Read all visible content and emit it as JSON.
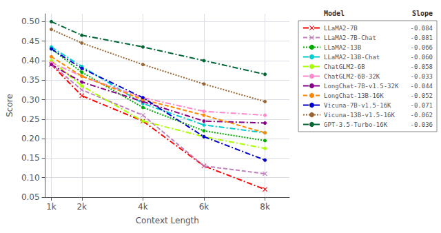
{
  "chart_data": {
    "type": "line",
    "xlabel": "Context Length",
    "ylabel": "Score",
    "x": [
      1000,
      2000,
      4000,
      6000,
      8000
    ],
    "xlim": [
      800,
      8800
    ],
    "xticks": [
      {
        "value": 1000,
        "label": "1k"
      },
      {
        "value": 2000,
        "label": "2k"
      },
      {
        "value": 4000,
        "label": "4k"
      },
      {
        "value": 6000,
        "label": "6k"
      },
      {
        "value": 8000,
        "label": "8k"
      }
    ],
    "ylim": [
      0.05,
      0.52
    ],
    "yticks": [
      {
        "value": 0.05,
        "label": "0.05"
      },
      {
        "value": 0.1,
        "label": "0.10"
      },
      {
        "value": 0.15,
        "label": "0.15"
      },
      {
        "value": 0.2,
        "label": "0.20"
      },
      {
        "value": 0.25,
        "label": "0.25"
      },
      {
        "value": 0.3,
        "label": "0.30"
      },
      {
        "value": 0.35,
        "label": "0.35"
      },
      {
        "value": 0.4,
        "label": "0.40"
      },
      {
        "value": 0.45,
        "label": "0.45"
      },
      {
        "value": 0.5,
        "label": "0.50"
      }
    ],
    "grid": true,
    "legend": "right",
    "legend_columns": [
      "Model",
      "Slope"
    ],
    "series": [
      {
        "name": "LLaMA2-7B",
        "slope": "-0.084",
        "color": "#FF0000",
        "line_style": "dashdot",
        "marker": "x",
        "values": [
          0.39,
          0.31,
          0.245,
          0.13,
          0.07
        ]
      },
      {
        "name": "LLaMA2-7B-Chat",
        "slope": "-0.081",
        "color": "#BF7FBF",
        "line_style": "dashed",
        "marker": "x",
        "values": [
          0.39,
          0.325,
          0.26,
          0.13,
          0.11
        ]
      },
      {
        "name": "LLaMA2-13B",
        "slope": "-0.066",
        "color": "#00AA00",
        "line_style": "dotted",
        "marker": "point",
        "values": [
          0.43,
          0.37,
          0.28,
          0.22,
          0.195
        ]
      },
      {
        "name": "LLaMA2-13B-Chat",
        "slope": "-0.060",
        "color": "#00CCCC",
        "line_style": "dashdot",
        "marker": "point",
        "values": [
          0.435,
          0.385,
          0.29,
          0.235,
          0.215
        ]
      },
      {
        "name": "ChatGLM2-6B",
        "slope": "-0.058",
        "color": "#AAFF00",
        "line_style": "dashdot",
        "marker": "point",
        "values": [
          0.4,
          0.335,
          0.245,
          0.205,
          0.175
        ]
      },
      {
        "name": "ChatGLM2-6B-32K",
        "slope": "-0.033",
        "color": "#FF88CC",
        "line_style": "dashdot",
        "marker": "point",
        "values": [
          0.395,
          0.36,
          0.305,
          0.27,
          0.26
        ]
      },
      {
        "name": "LongChat-7B-v1.5-32K",
        "slope": "-0.044",
        "color": "#880088",
        "line_style": "dashdot",
        "marker": "point",
        "values": [
          0.39,
          0.345,
          0.295,
          0.245,
          0.24
        ]
      },
      {
        "name": "LongChat-13B-16K",
        "slope": "-0.052",
        "color": "#FF8800",
        "line_style": "dashed",
        "marker": "point",
        "values": [
          0.41,
          0.36,
          0.3,
          0.26,
          0.215
        ]
      },
      {
        "name": "Vicuna-7B-v1.5-16K",
        "slope": "-0.071",
        "color": "#0000CC",
        "line_style": "dashdot",
        "marker": "point",
        "values": [
          0.43,
          0.38,
          0.305,
          0.205,
          0.145
        ]
      },
      {
        "name": "Vicuna-13B-v1.5-16K",
        "slope": "-0.062",
        "color": "#996633",
        "line_style": "dotted",
        "marker": "point",
        "values": [
          0.48,
          0.445,
          0.39,
          0.34,
          0.295
        ]
      },
      {
        "name": "GPT-3.5-Turbo-16K",
        "slope": "-0.036",
        "color": "#006633",
        "line_style": "dashdot",
        "marker": "point",
        "values": [
          0.5,
          0.465,
          0.435,
          0.4,
          0.365
        ]
      }
    ]
  }
}
